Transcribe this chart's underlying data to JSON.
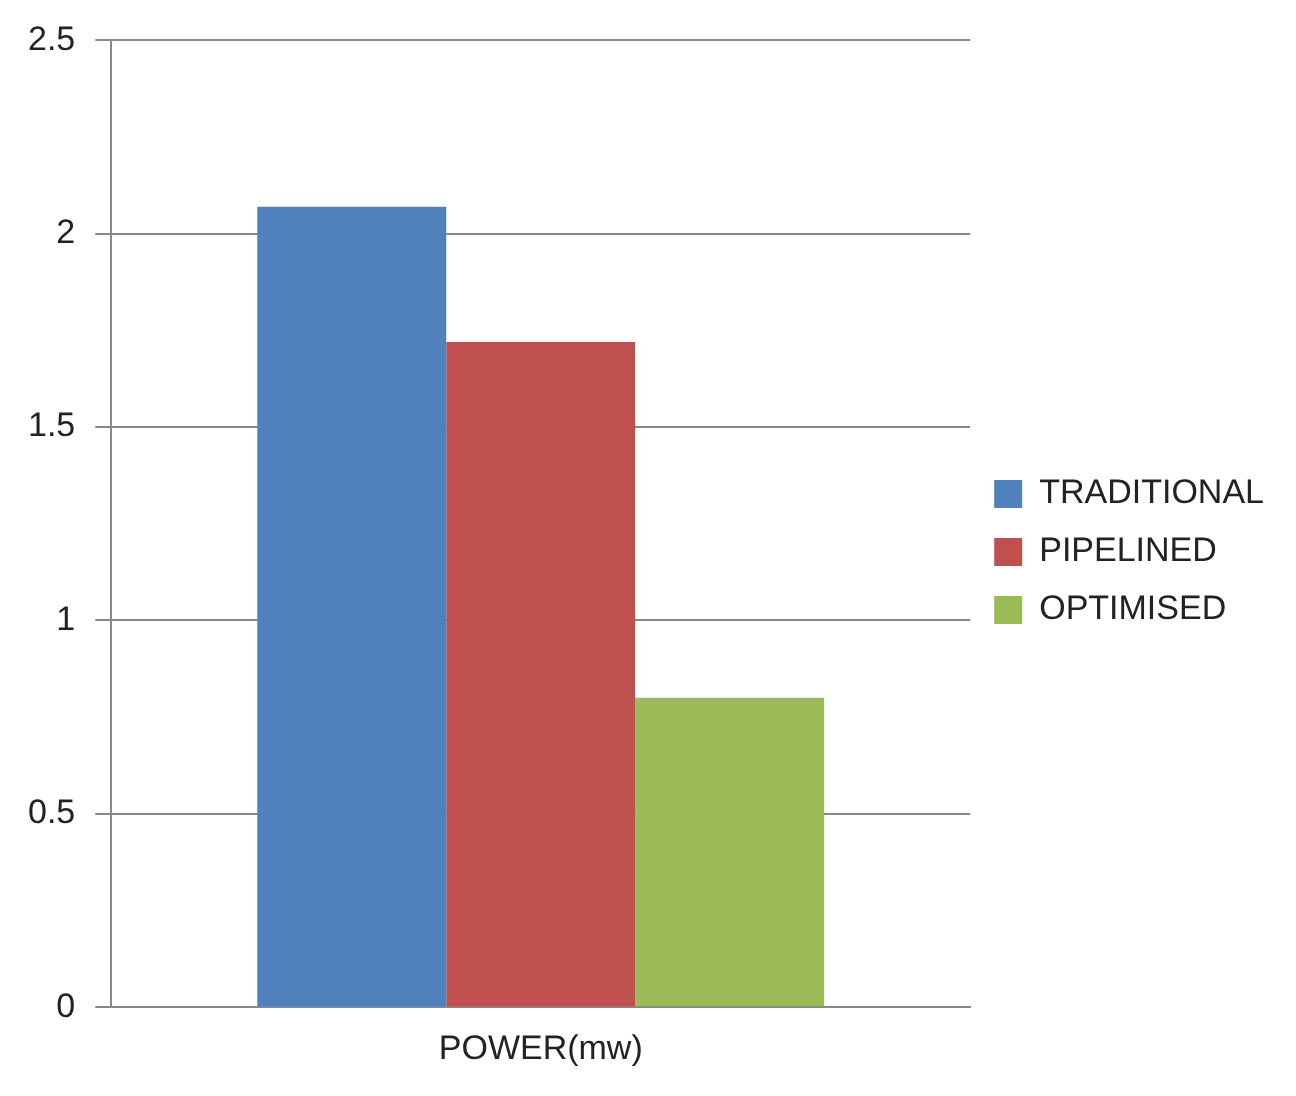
{
  "chart_data": {
    "type": "bar",
    "categories": [
      "POWER(mw)"
    ],
    "series": [
      {
        "name": "TRADITIONAL",
        "color": "#4f81bd",
        "values": [
          2.07
        ]
      },
      {
        "name": "PIPELINED",
        "color": "#c0504d",
        "values": [
          1.72
        ]
      },
      {
        "name": "OPTIMISED",
        "color": "#9bbb59",
        "values": [
          0.8
        ]
      }
    ],
    "ylim": [
      0,
      2.5
    ],
    "yticks": [
      0,
      0.5,
      1,
      1.5,
      2,
      2.5
    ],
    "grid": "y",
    "legend": "right"
  }
}
